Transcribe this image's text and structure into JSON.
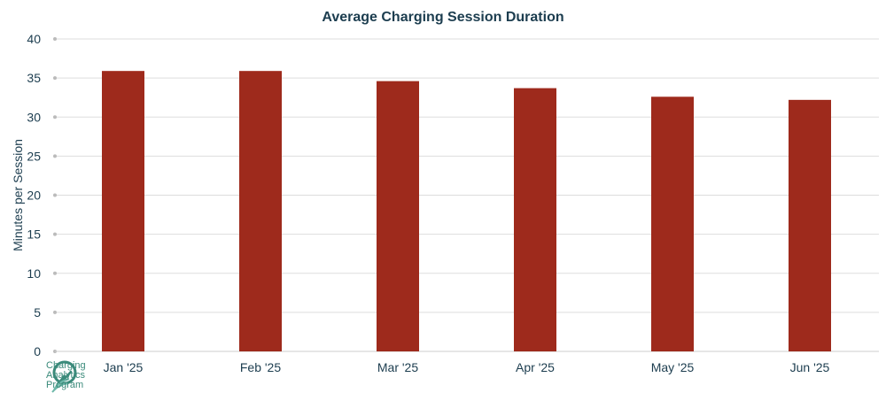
{
  "chart_data": {
    "type": "bar",
    "title": "Average Charging Session Duration",
    "ylabel": "Minutes per Session",
    "xlabel": "",
    "categories": [
      "Jan '25",
      "Feb '25",
      "Mar '25",
      "Apr '25",
      "May '25",
      "Jun '25"
    ],
    "values": [
      35.9,
      35.9,
      34.6,
      33.7,
      32.6,
      32.2
    ],
    "ylim": [
      0,
      40
    ],
    "yticks": [
      0,
      5,
      10,
      15,
      20,
      25,
      30,
      35,
      40
    ],
    "grid": true,
    "legend": "none"
  },
  "colors": {
    "bar": "#9e2a1c",
    "title": "#1c3d4f",
    "axis_text": "#1c3d4f",
    "grid": "#dddddd",
    "logo": "#3a8a7a"
  },
  "logo": {
    "icon": "charging-bolt-leaf-icon",
    "lines": [
      "Charging",
      "Analytics",
      "Program"
    ]
  }
}
